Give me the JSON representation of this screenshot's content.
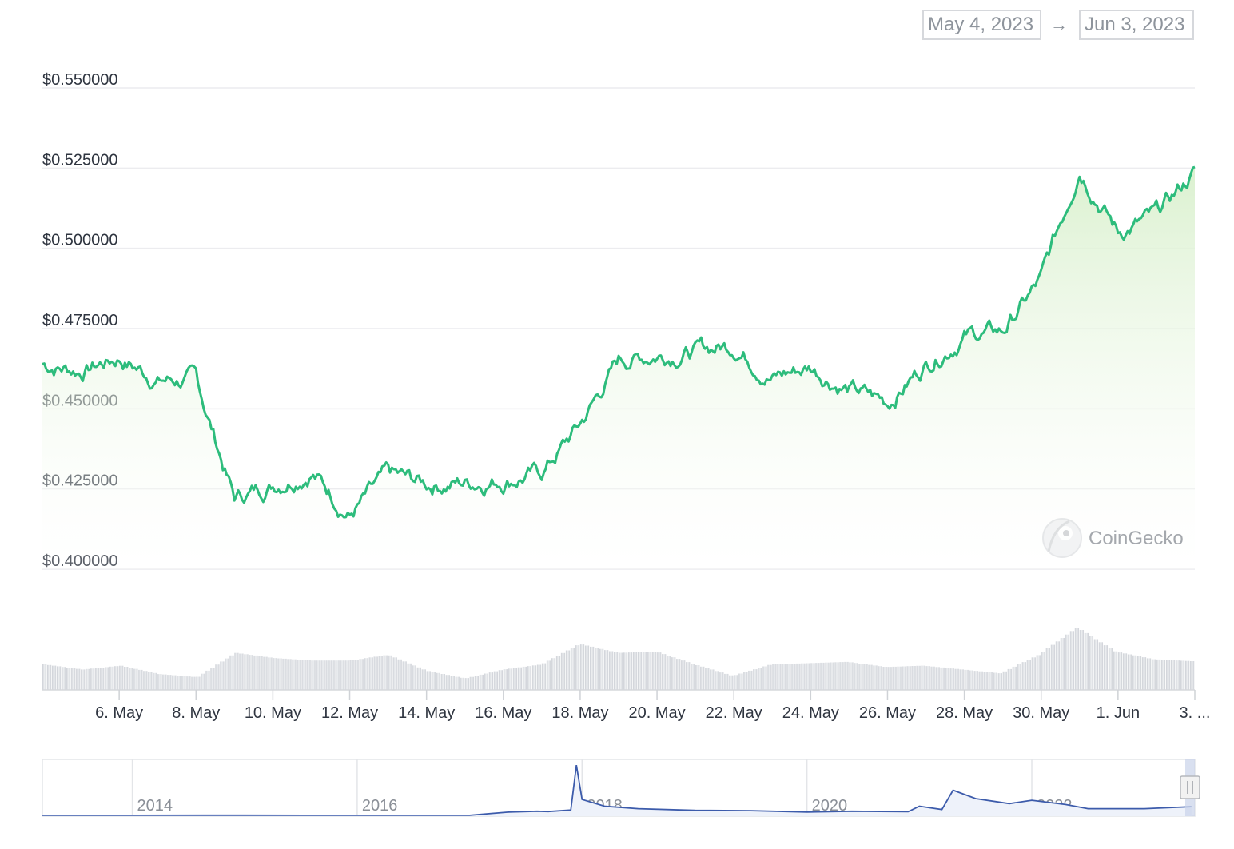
{
  "range_selector": {
    "from": "May 4, 2023",
    "arrow": "→",
    "to": "Jun 3, 2023"
  },
  "brand": {
    "name": "CoinGecko",
    "icon": "gecko-logo-icon"
  },
  "colors": {
    "price_line": "#2dbc7c",
    "price_fill_top": "#d9f0cd",
    "volume_bar": "#d9dbe0",
    "navigator_line": "#3c5bab",
    "gridline": "#ececef"
  },
  "chart_data": [
    {
      "type": "area",
      "series": [
        {
          "x": [
            "May 4",
            "May 5",
            "May 6",
            "May 7",
            "May 8",
            "May 9",
            "May 10",
            "May 11",
            "May 12",
            "May 13",
            "May 14",
            "May 15",
            "May 16",
            "May 17",
            "May 18",
            "May 19",
            "May 20",
            "May 21",
            "May 22",
            "May 23",
            "May 24",
            "May 25",
            "May 26",
            "May 27",
            "May 28",
            "May 29",
            "May 30",
            "May 31",
            "Jun 1",
            "Jun 2",
            "Jun 3"
          ],
          "values": [
            0.464,
            0.462,
            0.466,
            0.459,
            0.459,
            0.422,
            0.4265,
            0.431,
            0.417,
            0.429,
            0.4265,
            0.427,
            0.428,
            0.43,
            0.445,
            0.465,
            0.467,
            0.468,
            0.47,
            0.46,
            0.463,
            0.456,
            0.452,
            0.464,
            0.473,
            0.474,
            0.49,
            0.526,
            0.505,
            0.51,
            0.524
          ]
        }
      ],
      "yticks": [
        "$0.550000",
        "$0.525000",
        "$0.500000",
        "$0.475000",
        "$0.450000",
        "$0.425000",
        "$0.400000"
      ],
      "ylim": [
        0.4,
        0.55
      ],
      "grid": true,
      "xticks": [
        "6. May",
        "8. May",
        "10. May",
        "12. May",
        "14. May",
        "16. May",
        "18. May",
        "20. May",
        "22. May",
        "24. May",
        "26. May",
        "28. May",
        "30. May",
        "1. Jun",
        "3. ..."
      ]
    },
    {
      "type": "bar",
      "series": [
        {
          "x": [
            "May 4",
            "May 5",
            "May 6",
            "May 7",
            "May 8",
            "May 9",
            "May 10",
            "May 11",
            "May 12",
            "May 13",
            "May 14",
            "May 15",
            "May 16",
            "May 17",
            "May 18",
            "May 19",
            "May 20",
            "May 21",
            "May 22",
            "May 23",
            "May 24",
            "May 25",
            "May 26",
            "May 27",
            "May 28",
            "May 29",
            "May 30",
            "May 31",
            "Jun 1",
            "Jun 2",
            "Jun 3"
          ],
          "values": [
            0.4,
            0.32,
            0.38,
            0.25,
            0.2,
            0.58,
            0.5,
            0.46,
            0.46,
            0.55,
            0.3,
            0.18,
            0.32,
            0.4,
            0.72,
            0.58,
            0.6,
            0.4,
            0.22,
            0.4,
            0.42,
            0.44,
            0.36,
            0.38,
            0.32,
            0.26,
            0.55,
            0.98,
            0.6,
            0.48,
            0.45
          ]
        }
      ],
      "note": "relative volume"
    },
    {
      "type": "line",
      "xticks": [
        "2014",
        "2016",
        "2018",
        "2020",
        "2022"
      ],
      "series": [
        {
          "x": [
            2013.2,
            2014,
            2015,
            2016,
            2017.0,
            2017.35,
            2017.6,
            2017.7,
            2017.9,
            2017.95,
            2018.0,
            2018.2,
            2018.5,
            2019,
            2019.5,
            2020.0,
            2020.4,
            2020.9,
            2021.0,
            2021.2,
            2021.3,
            2021.5,
            2021.8,
            2022.0,
            2022.3,
            2022.5,
            2023.0,
            2023.42
          ],
          "values": [
            0.004,
            0.005,
            0.008,
            0.007,
            0.006,
            0.2,
            0.25,
            0.23,
            0.32,
            3.0,
            0.95,
            0.55,
            0.4,
            0.3,
            0.28,
            0.2,
            0.25,
            0.22,
            0.55,
            0.35,
            1.5,
            1.0,
            0.7,
            0.9,
            0.65,
            0.4,
            0.4,
            0.52
          ]
        }
      ]
    }
  ]
}
